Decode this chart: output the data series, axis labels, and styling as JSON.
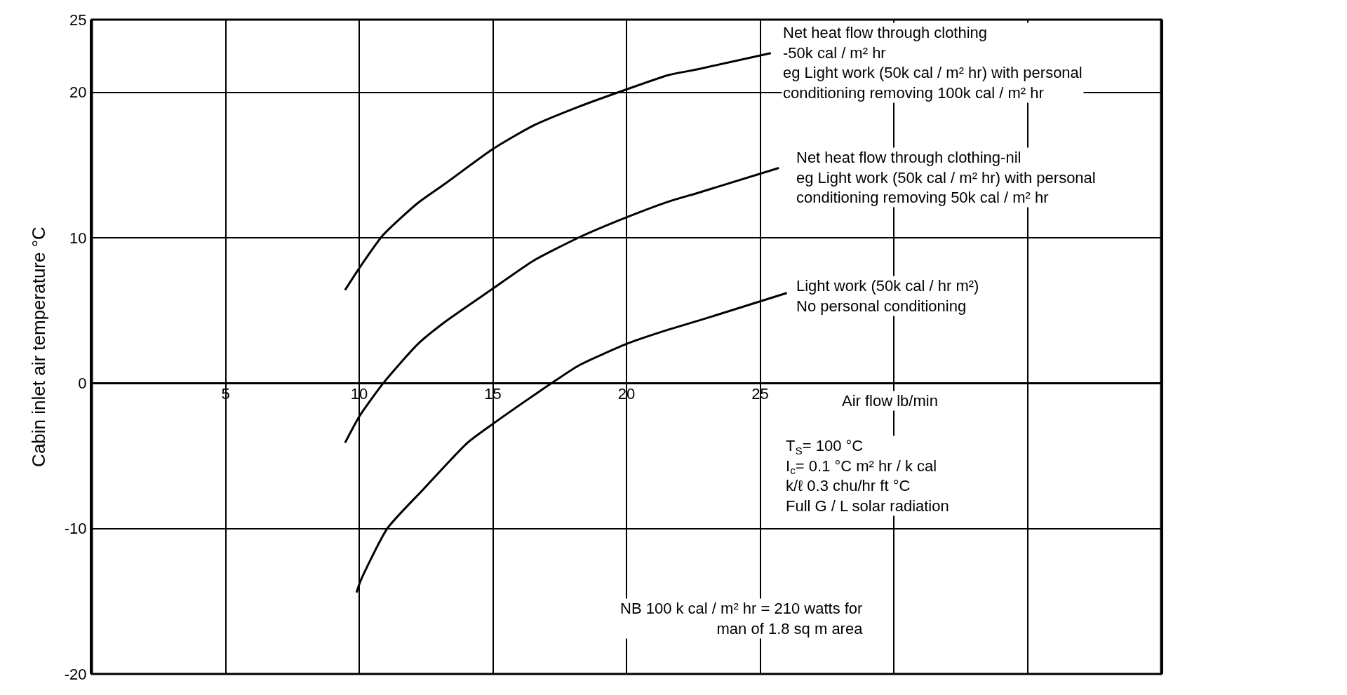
{
  "chart_data": {
    "type": "line",
    "xlabel": "Air flow lb/min",
    "ylabel": "Cabin inlet air temperature °C",
    "xlim": [
      0,
      40
    ],
    "xticks": [
      5,
      10,
      15,
      20,
      25,
      {
        "value": 30,
        "label": null
      },
      {
        "value": 35,
        "label": null
      }
    ],
    "ylim": [
      -20,
      25
    ],
    "yticks": [
      -20,
      -10,
      0,
      10,
      20,
      25
    ],
    "grid": true,
    "marker": "none",
    "line_style": "solid",
    "series": [
      {
        "color": "#000000",
        "x": [
          9.47,
          10,
          10.9,
          12.2,
          13.2,
          15,
          16.5,
          18.2,
          20,
          21.6,
          22.7,
          25.4
        ],
        "values": [
          6.4,
          7.9,
          10.2,
          12.4,
          13.7,
          16.1,
          17.7,
          19.0,
          20.2,
          21.2,
          21.6,
          22.7
        ]
      },
      {
        "color": "#000000",
        "x": [
          9.47,
          10,
          10.9,
          12.2,
          13.2,
          15,
          16.5,
          18.2,
          20,
          21.6,
          22.7,
          25.7
        ],
        "values": [
          -4.1,
          -2.3,
          0,
          2.7,
          4.2,
          6.5,
          8.4,
          10.0,
          11.4,
          12.5,
          13.1,
          14.8
        ]
      },
      {
        "color": "#000000",
        "x": [
          9.9,
          10.05,
          11.05,
          12.4,
          14.05,
          15,
          17.2,
          18.2,
          20,
          21.6,
          22.7,
          26.0
        ],
        "values": [
          -14.4,
          -13.6,
          -10,
          -7.3,
          -4.1,
          -2.8,
          0,
          1.2,
          2.7,
          3.7,
          4.3,
          6.2
        ]
      }
    ],
    "annotations": [
      "Net heat flow through clothing\n-50k cal / m² hr\neg Light work (50k cal / m² hr) with personal\nconditioning removing 100k cal / m² hr",
      "Net heat flow through clothing-nil\neg Light work (50k cal / m² hr) with personal\nconditioning removing 50k cal / m² hr",
      "Light work (50k cal / hr m²)\nNo personal conditioning",
      "T$_{S}$= 100 °C\nI$_{c}$= 0.1 °C m² hr / k cal\nk/ℓ 0.3 chu/hr ft °C\nFull G / L solar radiation",
      "NB 100 k cal / m² hr = 210 watts for\nman of 1.8 sq m area"
    ]
  }
}
